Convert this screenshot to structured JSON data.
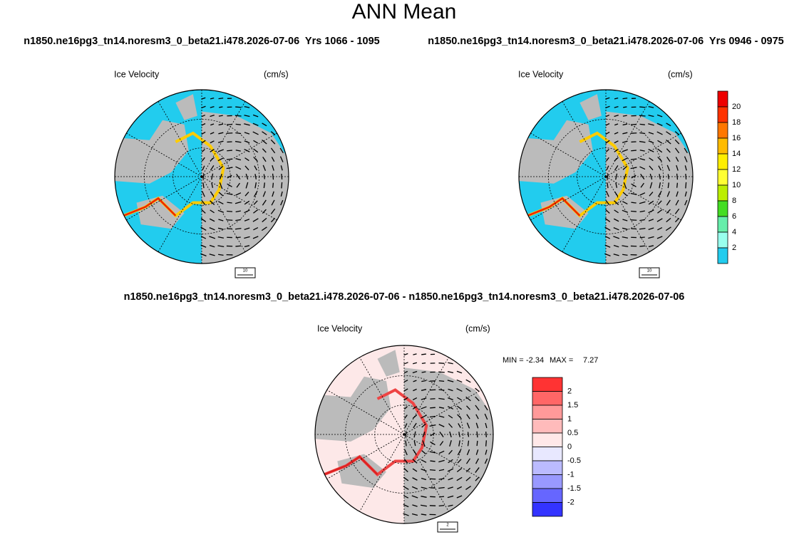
{
  "header": {
    "title": "ANN Mean"
  },
  "panels": [
    {
      "subtitle": "n1850.ne16pg3_tn14.noresm3_0_beta21.i478.2026-07-06  Yrs 1066 - 1095",
      "field": "Ice Velocity",
      "units": "(cm/s)",
      "vector_ref": 10
    },
    {
      "subtitle": "n1850.ne16pg3_tn14.noresm3_0_beta21.i478.2026-07-06  Yrs 0946 - 0975",
      "field": "Ice Velocity",
      "units": "(cm/s)",
      "vector_ref": 10
    }
  ],
  "colorbar": {
    "labels": [
      20,
      18,
      16,
      14,
      12,
      10,
      8,
      6,
      4,
      2
    ],
    "colors": [
      "#ee0000",
      "#ff3300",
      "#ff7700",
      "#ffbb00",
      "#ffee00",
      "#ffff33",
      "#bbee00",
      "#44dd22",
      "#66eeaa",
      "#99ffee",
      "#22ccee"
    ]
  },
  "difference": {
    "subtitle": "n1850.ne16pg3_tn14.noresm3_0_beta21.i478.2026-07-06 - n1850.ne16pg3_tn14.noresm3_0_beta21.i478.2026-07-06",
    "field": "Ice Velocity",
    "units": "(cm/s)",
    "min_label": "MIN =",
    "min": -2.34,
    "max_label": "MAX =",
    "max": 7.27,
    "vector_ref": 2,
    "colorbar": {
      "labels": [
        2,
        1.5,
        1,
        0.5,
        0,
        -0.5,
        -1,
        -1.5,
        -2
      ],
      "colors": [
        "#ff3333",
        "#ff6666",
        "#ff9999",
        "#ffbbbb",
        "#ffe8e8",
        "#e8e8ff",
        "#bbbbff",
        "#9999ff",
        "#6666ff",
        "#3333ff"
      ]
    }
  }
}
